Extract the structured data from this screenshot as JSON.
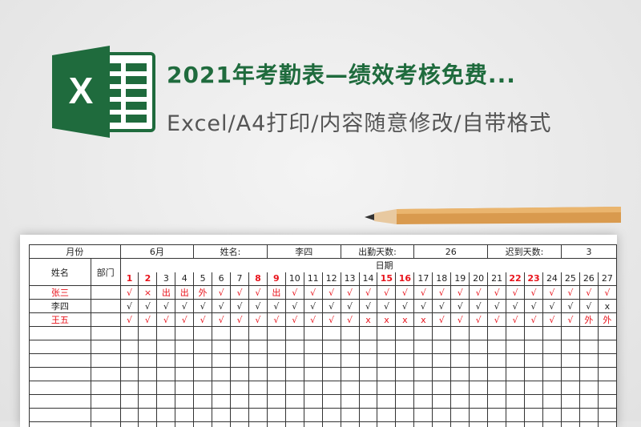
{
  "header": {
    "title": "2021年考勤表—绩效考核免费...",
    "subtitle": "Excel/A4打印/内容随意修改/自带格式",
    "logo_letter": "X",
    "brand_color": "#1f6b3d"
  },
  "sheet": {
    "month_label": "月份",
    "month_value": "6月",
    "name_label": "姓名:",
    "name_value": "李四",
    "attend_label": "出勤天数:",
    "attend_value": "26",
    "late_label": "迟到天数:",
    "late_value": "3",
    "col_name": "姓名",
    "col_dept": "部门",
    "date_label": "日期",
    "days": [
      1,
      2,
      3,
      4,
      5,
      6,
      7,
      8,
      9,
      10,
      11,
      12,
      13,
      14,
      15,
      16,
      17,
      18,
      19,
      20,
      21,
      22,
      23,
      24,
      25,
      26,
      27
    ],
    "weekend_days": [
      1,
      2,
      8,
      9,
      15,
      16,
      22,
      23
    ],
    "rows": [
      {
        "name": "张三",
        "red": true,
        "marks": [
          "√",
          "×",
          "出",
          "出",
          "外",
          "√",
          "√",
          "√",
          "出",
          "√",
          "√",
          "√",
          "√",
          "√",
          "√",
          "√",
          "√",
          "√",
          "√",
          "√",
          "√",
          "√",
          "√",
          "√",
          "√",
          "√",
          "√"
        ]
      },
      {
        "name": "李四",
        "red": false,
        "marks": [
          "√",
          "√",
          "√",
          "√",
          "√",
          "√",
          "√",
          "√",
          "√",
          "√",
          "√",
          "√",
          "√",
          "√",
          "√",
          "√",
          "√",
          "√",
          "√",
          "√",
          "√",
          "√",
          "√",
          "√",
          "√",
          "√",
          "x"
        ]
      },
      {
        "name": "王五",
        "red": true,
        "marks": [
          "√",
          "√",
          "√",
          "√",
          "√",
          "√",
          "√",
          "√",
          "√",
          "√",
          "√",
          "√",
          "√",
          "x",
          "x",
          "x",
          "x",
          "√",
          "√",
          "√",
          "√",
          "√",
          "√",
          "√",
          "√",
          "外",
          "外"
        ]
      }
    ],
    "empty_rows": 8,
    "accent_red": "#e8131b"
  }
}
